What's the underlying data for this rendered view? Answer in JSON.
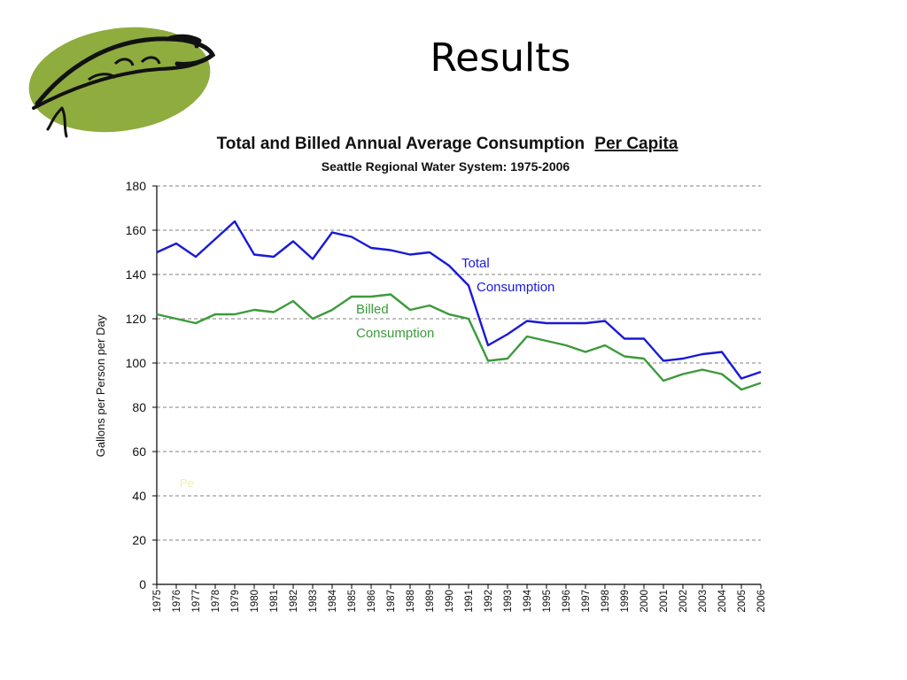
{
  "slide": {
    "title": "Results"
  },
  "colors": {
    "logo_fill": "#8fac3f",
    "total": "#1a1ad6",
    "billed": "#3c9a3c",
    "grid": "#9a9a9a"
  },
  "logo": {
    "icon": "salmon-fish-icon"
  },
  "chart_data": {
    "type": "line",
    "title": "Total and Billed Annual Average Consumption",
    "title_underlined": "Per Capita",
    "subtitle": "Seattle Regional Water System:  1975-2006",
    "ylabel": "Gallons per Person per Day",
    "xlabel": "",
    "ylim": [
      0,
      180
    ],
    "yticks": [
      0,
      20,
      40,
      60,
      80,
      100,
      120,
      140,
      160,
      180
    ],
    "grid": true,
    "x": [
      "1975",
      "1976",
      "1977",
      "1978",
      "1979",
      "1980",
      "1981",
      "1982",
      "1983",
      "1984",
      "1985",
      "1986",
      "1987",
      "1988",
      "1989",
      "1990",
      "1991",
      "1992",
      "1993",
      "1994",
      "1995",
      "1996",
      "1997",
      "1998",
      "1999",
      "2000",
      "2001",
      "2002",
      "2003",
      "2004",
      "2005",
      "2006"
    ],
    "series": [
      {
        "name": "Total Consumption",
        "label_lines": [
          "Total",
          "Consumption"
        ],
        "values": [
          150,
          154,
          148,
          156,
          164,
          149,
          148,
          155,
          147,
          159,
          157,
          152,
          151,
          149,
          150,
          144,
          135,
          108,
          113,
          119,
          118,
          118,
          118,
          119,
          111,
          111,
          101,
          102,
          104,
          105,
          93,
          96
        ]
      },
      {
        "name": "Billed Consumption",
        "label_lines": [
          "Billed",
          "Consumption"
        ],
        "values": [
          122,
          120,
          118,
          122,
          122,
          124,
          123,
          128,
          120,
          124,
          130,
          130,
          131,
          124,
          126,
          122,
          120,
          101,
          102,
          112,
          110,
          108,
          105,
          108,
          103,
          102,
          92,
          95,
          97,
          95,
          88,
          91
        ]
      }
    ],
    "annotations": [
      "Pe"
    ]
  }
}
